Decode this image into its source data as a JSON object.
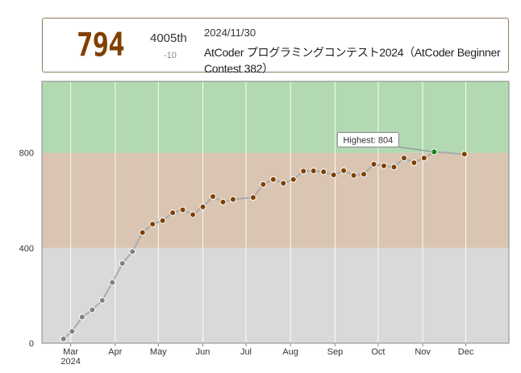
{
  "info": {
    "rating": "794",
    "rank": "4005th",
    "rating_change": "-10",
    "date": "2024/11/30",
    "contest": "AtCoder プログラミングコンテスト2024（AtCoder Beginner Contest 382）"
  },
  "colors": {
    "band_gray": "#d9d9d9",
    "band_brown": "#d9c5b2",
    "band_green": "#b2d9b2",
    "rating_text": "#804000",
    "point_gray": "#808080",
    "point_brown": "#804000",
    "point_highest": "#008000",
    "line": "#aaaaaa"
  },
  "chart_data": {
    "type": "line",
    "title": "",
    "xlabel": "",
    "ylabel": "",
    "ylim": [
      0,
      1100
    ],
    "y_ticks": [
      "0",
      "400",
      "800"
    ],
    "x_ticks": [
      {
        "date": "2024-03-01",
        "label": "Mar",
        "sub": "2024"
      },
      {
        "date": "2024-04-01",
        "label": "Apr",
        "sub": ""
      },
      {
        "date": "2024-05-01",
        "label": "May",
        "sub": ""
      },
      {
        "date": "2024-06-01",
        "label": "Jun",
        "sub": ""
      },
      {
        "date": "2024-07-01",
        "label": "Jul",
        "sub": ""
      },
      {
        "date": "2024-08-01",
        "label": "Aug",
        "sub": ""
      },
      {
        "date": "2024-09-01",
        "label": "Sep",
        "sub": ""
      },
      {
        "date": "2024-10-01",
        "label": "Oct",
        "sub": ""
      },
      {
        "date": "2024-11-01",
        "label": "Nov",
        "sub": ""
      },
      {
        "date": "2024-12-01",
        "label": "Dec",
        "sub": ""
      }
    ],
    "xlim": [
      "2024-02-10",
      "2024-12-31"
    ],
    "bands": [
      {
        "from": 0,
        "to": 400,
        "color": "#d9d9d9"
      },
      {
        "from": 400,
        "to": 800,
        "color": "#d9c5b2"
      },
      {
        "from": 800,
        "to": 1100,
        "color": "#b2d9b2"
      }
    ],
    "highest_label": "Highest: 804",
    "series": [
      {
        "points": [
          {
            "x": "2024-02-25",
            "y": 18
          },
          {
            "x": "2024-03-02",
            "y": 50
          },
          {
            "x": "2024-03-09",
            "y": 110
          },
          {
            "x": "2024-03-16",
            "y": 140
          },
          {
            "x": "2024-03-23",
            "y": 180
          },
          {
            "x": "2024-03-30",
            "y": 255
          },
          {
            "x": "2024-04-06",
            "y": 335
          },
          {
            "x": "2024-04-13",
            "y": 385
          },
          {
            "x": "2024-04-20",
            "y": 465
          },
          {
            "x": "2024-04-27",
            "y": 500
          },
          {
            "x": "2024-05-04",
            "y": 515
          },
          {
            "x": "2024-05-11",
            "y": 548
          },
          {
            "x": "2024-05-18",
            "y": 560
          },
          {
            "x": "2024-05-25",
            "y": 540
          },
          {
            "x": "2024-06-01",
            "y": 573
          },
          {
            "x": "2024-06-08",
            "y": 616
          },
          {
            "x": "2024-06-15",
            "y": 593
          },
          {
            "x": "2024-06-22",
            "y": 604
          },
          {
            "x": "2024-07-06",
            "y": 612
          },
          {
            "x": "2024-07-13",
            "y": 667
          },
          {
            "x": "2024-07-20",
            "y": 688
          },
          {
            "x": "2024-07-27",
            "y": 672
          },
          {
            "x": "2024-08-03",
            "y": 688
          },
          {
            "x": "2024-08-10",
            "y": 723
          },
          {
            "x": "2024-08-17",
            "y": 724
          },
          {
            "x": "2024-08-24",
            "y": 720
          },
          {
            "x": "2024-08-31",
            "y": 707
          },
          {
            "x": "2024-09-07",
            "y": 725
          },
          {
            "x": "2024-09-14",
            "y": 705
          },
          {
            "x": "2024-09-21",
            "y": 710
          },
          {
            "x": "2024-09-28",
            "y": 752
          },
          {
            "x": "2024-10-05",
            "y": 745
          },
          {
            "x": "2024-10-12",
            "y": 740
          },
          {
            "x": "2024-10-19",
            "y": 778
          },
          {
            "x": "2024-10-26",
            "y": 758
          },
          {
            "x": "2024-11-02",
            "y": 778
          },
          {
            "x": "2024-11-09",
            "y": 804
          },
          {
            "x": "2024-11-30",
            "y": 794
          }
        ]
      }
    ]
  }
}
